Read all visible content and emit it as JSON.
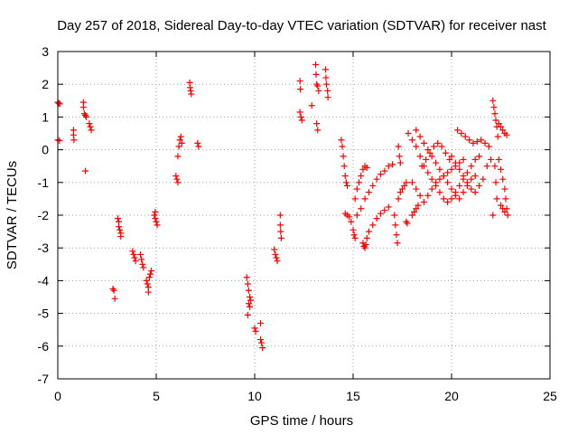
{
  "chart_data": {
    "type": "scatter",
    "title": "Day 257 of 2018, Sidereal Day-to-day VTEC variation (SDTVAR) for receiver nast",
    "xlabel": "GPS time / hours",
    "ylabel": "SDTVAR / TECUs",
    "xlim": [
      0,
      25
    ],
    "ylim": [
      -7,
      3
    ],
    "xticks": [
      "0",
      "5",
      "10",
      "15",
      "20",
      "25"
    ],
    "yticks": [
      "-7",
      "-6",
      "-5",
      "-4",
      "-3",
      "-2",
      "-1",
      "0",
      "1",
      "2",
      "3"
    ],
    "grid": true,
    "marker": "plus",
    "color": "#ff0000",
    "series": [
      {
        "name": "SDTVAR",
        "points": [
          [
            0.0,
            1.45
          ],
          [
            0.05,
            1.42
          ],
          [
            0.1,
            1.4
          ],
          [
            0.0,
            0.3
          ],
          [
            0.08,
            0.28
          ],
          [
            0.8,
            0.6
          ],
          [
            0.8,
            0.45
          ],
          [
            0.82,
            0.3
          ],
          [
            1.3,
            1.45
          ],
          [
            1.3,
            1.3
          ],
          [
            1.35,
            1.1
          ],
          [
            1.4,
            1.05
          ],
          [
            1.45,
            1.0
          ],
          [
            1.4,
            -0.65
          ],
          [
            1.6,
            0.8
          ],
          [
            1.65,
            0.7
          ],
          [
            1.7,
            0.6
          ],
          [
            2.8,
            -4.25
          ],
          [
            2.85,
            -4.3
          ],
          [
            2.9,
            -4.55
          ],
          [
            3.05,
            -2.1
          ],
          [
            3.1,
            -2.2
          ],
          [
            3.1,
            -2.35
          ],
          [
            3.15,
            -2.45
          ],
          [
            3.2,
            -2.55
          ],
          [
            3.2,
            -2.65
          ],
          [
            3.8,
            -3.1
          ],
          [
            3.85,
            -3.2
          ],
          [
            3.9,
            -3.3
          ],
          [
            3.95,
            -3.4
          ],
          [
            4.2,
            -3.2
          ],
          [
            4.25,
            -3.35
          ],
          [
            4.3,
            -3.5
          ],
          [
            4.35,
            -3.6
          ],
          [
            4.5,
            -4.0
          ],
          [
            4.55,
            -4.1
          ],
          [
            4.6,
            -4.2
          ],
          [
            4.6,
            -4.35
          ],
          [
            4.65,
            -3.9
          ],
          [
            4.7,
            -3.8
          ],
          [
            4.75,
            -3.7
          ],
          [
            4.9,
            -2.0
          ],
          [
            4.95,
            -2.1
          ],
          [
            5.0,
            -2.2
          ],
          [
            5.05,
            -2.3
          ],
          [
            4.95,
            -1.9
          ],
          [
            6.0,
            -0.8
          ],
          [
            6.05,
            -0.9
          ],
          [
            6.1,
            -1.0
          ],
          [
            6.1,
            -0.2
          ],
          [
            6.15,
            0.1
          ],
          [
            6.2,
            0.3
          ],
          [
            6.25,
            0.4
          ],
          [
            6.3,
            0.2
          ],
          [
            6.7,
            2.05
          ],
          [
            6.72,
            1.9
          ],
          [
            6.75,
            1.8
          ],
          [
            6.78,
            1.7
          ],
          [
            7.1,
            0.2
          ],
          [
            7.15,
            0.1
          ],
          [
            9.6,
            -3.9
          ],
          [
            9.65,
            -4.1
          ],
          [
            9.7,
            -4.3
          ],
          [
            9.75,
            -4.5
          ],
          [
            9.7,
            -4.7
          ],
          [
            9.75,
            -4.8
          ],
          [
            9.8,
            -4.6
          ],
          [
            9.65,
            -5.05
          ],
          [
            10.0,
            -5.45
          ],
          [
            10.05,
            -5.55
          ],
          [
            10.3,
            -5.3
          ],
          [
            10.3,
            -5.8
          ],
          [
            10.35,
            -5.9
          ],
          [
            10.4,
            -6.05
          ],
          [
            11.0,
            -3.05
          ],
          [
            11.05,
            -3.2
          ],
          [
            11.1,
            -3.3
          ],
          [
            11.15,
            -3.4
          ],
          [
            11.3,
            -2.0
          ],
          [
            11.3,
            -2.3
          ],
          [
            11.32,
            -2.5
          ],
          [
            11.35,
            -2.7
          ],
          [
            12.3,
            2.1
          ],
          [
            12.32,
            1.85
          ],
          [
            12.3,
            1.15
          ],
          [
            12.35,
            1.0
          ],
          [
            12.4,
            0.9
          ],
          [
            12.9,
            1.35
          ],
          [
            13.1,
            2.6
          ],
          [
            13.12,
            2.3
          ],
          [
            13.15,
            2.0
          ],
          [
            13.2,
            1.95
          ],
          [
            13.25,
            1.8
          ],
          [
            13.15,
            0.8
          ],
          [
            13.2,
            0.6
          ],
          [
            13.6,
            2.45
          ],
          [
            13.62,
            2.2
          ],
          [
            13.65,
            2.0
          ],
          [
            13.7,
            1.8
          ],
          [
            13.72,
            1.6
          ],
          [
            14.4,
            0.3
          ],
          [
            14.45,
            0.1
          ],
          [
            14.5,
            -0.2
          ],
          [
            14.55,
            -0.5
          ],
          [
            14.6,
            -0.8
          ],
          [
            14.65,
            -1.0
          ],
          [
            14.7,
            -1.1
          ],
          [
            14.6,
            -1.95
          ],
          [
            14.7,
            -2.0
          ],
          [
            14.8,
            -2.05
          ],
          [
            14.9,
            -2.2
          ],
          [
            15.0,
            -2.45
          ],
          [
            15.05,
            -2.6
          ],
          [
            15.1,
            -2.7
          ],
          [
            15.1,
            -1.5
          ],
          [
            15.2,
            -1.2
          ],
          [
            15.3,
            -1.0
          ],
          [
            15.4,
            -0.8
          ],
          [
            15.5,
            -0.6
          ],
          [
            15.6,
            -0.5
          ],
          [
            15.7,
            -0.55
          ],
          [
            15.2,
            -2.0
          ],
          [
            15.4,
            -1.8
          ],
          [
            15.6,
            -1.5
          ],
          [
            15.8,
            -1.3
          ],
          [
            16.0,
            -1.1
          ],
          [
            16.2,
            -0.9
          ],
          [
            16.4,
            -0.75
          ],
          [
            16.6,
            -0.65
          ],
          [
            16.8,
            -0.5
          ],
          [
            17.0,
            -0.45
          ],
          [
            15.5,
            -2.85
          ],
          [
            15.55,
            -2.95
          ],
          [
            15.6,
            -3.0
          ],
          [
            15.65,
            -2.9
          ],
          [
            15.7,
            -2.7
          ],
          [
            15.8,
            -2.5
          ],
          [
            16.0,
            -2.3
          ],
          [
            16.2,
            -2.1
          ],
          [
            16.4,
            -1.95
          ],
          [
            16.6,
            -1.85
          ],
          [
            16.8,
            -1.75
          ],
          [
            17.1,
            -2.0
          ],
          [
            17.15,
            -2.3
          ],
          [
            17.2,
            -2.6
          ],
          [
            17.25,
            -2.85
          ],
          [
            17.3,
            -1.5
          ],
          [
            17.4,
            -1.3
          ],
          [
            17.5,
            -1.2
          ],
          [
            17.6,
            -1.1
          ],
          [
            17.7,
            -1.0
          ],
          [
            17.3,
            0.1
          ],
          [
            17.35,
            -0.2
          ],
          [
            17.4,
            -0.4
          ],
          [
            17.7,
            -2.2
          ],
          [
            17.75,
            -2.25
          ],
          [
            17.8,
            0.5
          ],
          [
            18.0,
            0.3
          ],
          [
            18.2,
            0.1
          ],
          [
            18.4,
            -0.2
          ],
          [
            18.6,
            -0.5
          ],
          [
            18.8,
            -0.7
          ],
          [
            19.0,
            -0.9
          ],
          [
            19.2,
            -1.1
          ],
          [
            19.4,
            -1.3
          ],
          [
            19.6,
            -1.5
          ],
          [
            19.8,
            -1.6
          ],
          [
            20.0,
            -1.5
          ],
          [
            20.2,
            -1.3
          ],
          [
            20.4,
            -1.1
          ],
          [
            20.6,
            -0.9
          ],
          [
            20.8,
            -0.7
          ],
          [
            21.0,
            -0.5
          ],
          [
            21.2,
            -0.3
          ],
          [
            21.4,
            -0.2
          ],
          [
            18.0,
            -1.0
          ],
          [
            18.2,
            -1.2
          ],
          [
            18.4,
            -1.4
          ],
          [
            18.6,
            -1.6
          ],
          [
            18.8,
            -1.4
          ],
          [
            19.0,
            -1.2
          ],
          [
            19.2,
            -1.0
          ],
          [
            19.4,
            -0.9
          ],
          [
            19.6,
            -0.8
          ],
          [
            19.8,
            -0.7
          ],
          [
            20.0,
            -0.6
          ],
          [
            20.2,
            -0.5
          ],
          [
            20.4,
            -0.4
          ],
          [
            20.6,
            -0.3
          ],
          [
            18.0,
            -2.0
          ],
          [
            18.1,
            -1.9
          ],
          [
            18.2,
            -1.8
          ],
          [
            18.3,
            -1.7
          ],
          [
            18.5,
            -0.5
          ],
          [
            18.7,
            -0.3
          ],
          [
            18.9,
            -0.1
          ],
          [
            19.1,
            0.1
          ],
          [
            19.3,
            0.2
          ],
          [
            19.5,
            0.1
          ],
          [
            19.7,
            -0.1
          ],
          [
            19.9,
            -0.3
          ],
          [
            18.2,
            0.6
          ],
          [
            18.4,
            0.4
          ],
          [
            18.6,
            0.2
          ],
          [
            18.8,
            0.0
          ],
          [
            19.0,
            -0.2
          ],
          [
            19.2,
            -0.4
          ],
          [
            19.4,
            -0.6
          ],
          [
            19.6,
            -0.8
          ],
          [
            19.8,
            -1.0
          ],
          [
            20.0,
            -1.2
          ],
          [
            20.2,
            -1.4
          ],
          [
            20.4,
            -1.5
          ],
          [
            20.6,
            -1.3
          ],
          [
            20.8,
            -1.1
          ],
          [
            21.0,
            -0.9
          ],
          [
            21.2,
            -0.8
          ],
          [
            20.3,
            0.6
          ],
          [
            20.5,
            0.5
          ],
          [
            20.7,
            0.4
          ],
          [
            20.9,
            0.3
          ],
          [
            21.1,
            0.2
          ],
          [
            21.3,
            0.25
          ],
          [
            21.5,
            0.3
          ],
          [
            21.7,
            0.2
          ],
          [
            21.9,
            0.1
          ],
          [
            20.0,
            -0.2
          ],
          [
            20.2,
            -0.4
          ],
          [
            20.4,
            -0.6
          ],
          [
            20.6,
            -0.8
          ],
          [
            20.8,
            -1.0
          ],
          [
            21.0,
            -1.2
          ],
          [
            21.2,
            -1.3
          ],
          [
            21.4,
            -1.1
          ],
          [
            21.6,
            -0.9
          ],
          [
            21.8,
            -0.5
          ],
          [
            22.0,
            -0.3
          ],
          [
            22.1,
            1.5
          ],
          [
            22.15,
            1.3
          ],
          [
            22.2,
            1.1
          ],
          [
            22.25,
            0.9
          ],
          [
            22.3,
            0.7
          ],
          [
            22.35,
            0.4
          ],
          [
            22.2,
            -0.5
          ],
          [
            22.25,
            -1.0
          ],
          [
            22.3,
            -1.5
          ],
          [
            22.1,
            -2.0
          ],
          [
            22.4,
            0.8
          ],
          [
            22.5,
            0.7
          ],
          [
            22.6,
            0.6
          ],
          [
            22.7,
            0.5
          ],
          [
            22.8,
            0.45
          ],
          [
            22.4,
            -0.3
          ],
          [
            22.5,
            -0.6
          ],
          [
            22.6,
            -0.9
          ],
          [
            22.7,
            -1.2
          ],
          [
            22.75,
            -1.5
          ],
          [
            22.8,
            -1.8
          ],
          [
            22.85,
            -2.0
          ],
          [
            22.5,
            -1.7
          ],
          [
            22.6,
            -1.8
          ],
          [
            22.7,
            -1.9
          ]
        ]
      }
    ]
  }
}
